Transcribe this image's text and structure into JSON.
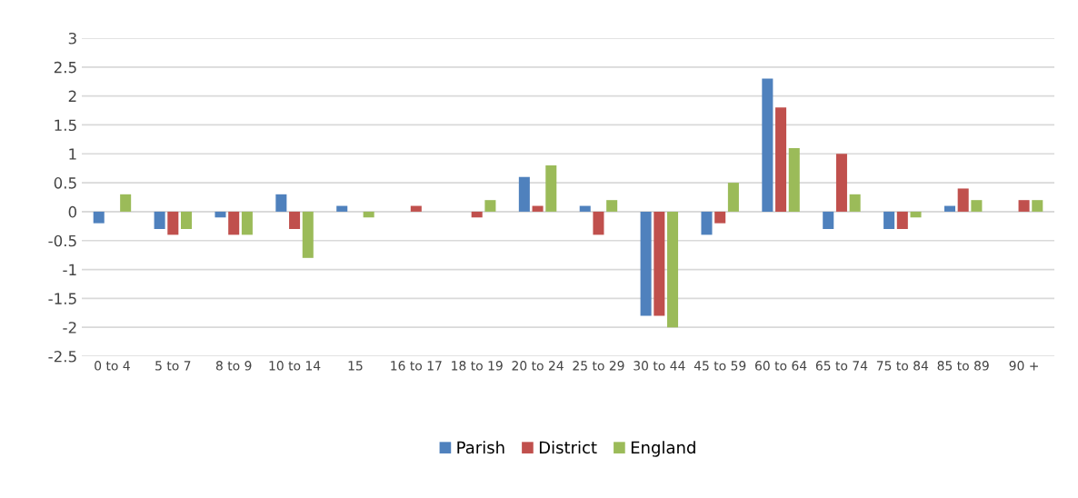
{
  "chart_data": {
    "type": "bar",
    "categories": [
      "0 to 4",
      "5 to 7",
      "8 to 9",
      "10 to 14",
      "15",
      "16 to 17",
      "18 to 19",
      "20 to 24",
      "25 to 29",
      "30 to 44",
      "45 to 59",
      "60 to 64",
      "65 to 74",
      "75 to 84",
      "85 to 89",
      "90 +"
    ],
    "series": [
      {
        "name": "Parish",
        "color": "#4f81bd",
        "values": [
          -0.2,
          -0.3,
          -0.1,
          0.3,
          0.1,
          0,
          0,
          0.6,
          0.1,
          -1.8,
          -0.4,
          2.3,
          -0.3,
          -0.3,
          0.1,
          0
        ]
      },
      {
        "name": "District",
        "color": "#c0504d",
        "values": [
          0,
          -0.4,
          -0.4,
          -0.3,
          0,
          0.1,
          -0.1,
          0.1,
          -0.4,
          -1.8,
          -0.2,
          1.8,
          1.0,
          -0.3,
          0.4,
          0.2
        ]
      },
      {
        "name": "England",
        "color": "#9bbb59",
        "values": [
          0.3,
          -0.3,
          -0.4,
          -0.8,
          -0.1,
          0,
          0.2,
          0.8,
          0.2,
          -2.0,
          0.5,
          1.1,
          0.3,
          -0.1,
          0.2,
          0.2
        ]
      }
    ],
    "ylim": [
      -2.5,
      3
    ],
    "yticks": [
      -2.5,
      -2,
      -1.5,
      -1,
      -0.5,
      0,
      0.5,
      1,
      1.5,
      2,
      2.5,
      3
    ],
    "grid": "y",
    "legend": "bottom"
  }
}
